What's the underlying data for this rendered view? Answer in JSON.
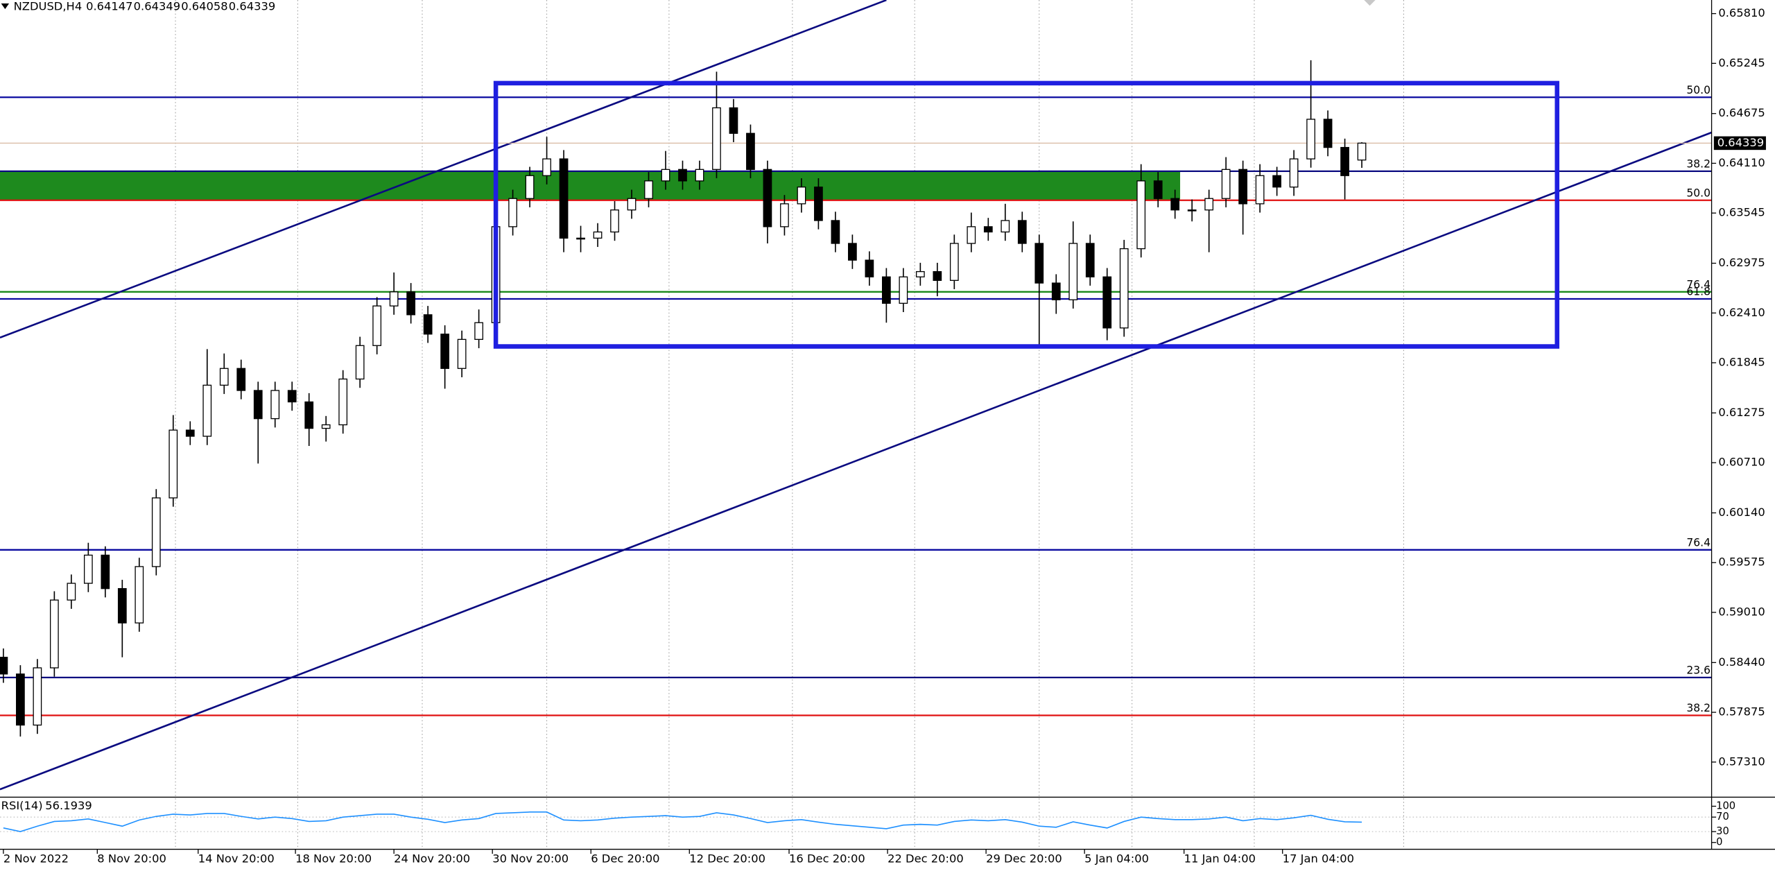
{
  "chart_data": {
    "type": "candlestick",
    "symbol": "NZDUSD,H4",
    "open": [
      0.585,
      0.5831,
      0.5773,
      0.5838,
      0.5915,
      0.5934,
      0.5966,
      0.5928,
      0.5889,
      0.5953,
      0.6031,
      0.6108,
      0.6101,
      0.6159,
      0.6178,
      0.6153,
      0.6121,
      0.6153,
      0.614,
      0.611,
      0.6114,
      0.6166,
      0.6204,
      0.6249,
      0.6265,
      0.6239,
      0.6217,
      0.6178,
      0.6211,
      0.623,
      0.6339,
      0.6371,
      0.6397,
      0.6416,
      0.6326,
      0.6326,
      0.6333,
      0.6358,
      0.6371,
      0.6391,
      0.6404,
      0.6391,
      0.6404,
      0.6474,
      0.6445,
      0.6404,
      0.6339,
      0.6365,
      0.6384,
      0.6346,
      0.632,
      0.6301,
      0.6282,
      0.6252,
      0.6282,
      0.6288,
      0.6278,
      0.632,
      0.6339,
      0.6333,
      0.6346,
      0.632,
      0.6275,
      0.6256,
      0.632,
      0.6282,
      0.6224,
      0.6314,
      0.6391,
      0.6371,
      0.6358,
      0.6358,
      0.6371,
      0.6404,
      0.6365,
      0.6397,
      0.6384,
      0.6416,
      0.6461,
      0.6429,
      0.64147
    ],
    "high": [
      0.586,
      0.5841,
      0.5848,
      0.5925,
      0.5944,
      0.598,
      0.5976,
      0.5938,
      0.5963,
      0.6041,
      0.6125,
      0.6118,
      0.62,
      0.6195,
      0.6188,
      0.6163,
      0.6163,
      0.6163,
      0.615,
      0.6124,
      0.6176,
      0.6214,
      0.6259,
      0.6287,
      0.6275,
      0.6249,
      0.6227,
      0.6221,
      0.6245,
      0.6349,
      0.6381,
      0.6407,
      0.6441,
      0.6426,
      0.634,
      0.6343,
      0.6368,
      0.6381,
      0.6401,
      0.6425,
      0.6414,
      0.6414,
      0.6515,
      0.6484,
      0.6455,
      0.6414,
      0.6375,
      0.6394,
      0.6394,
      0.6356,
      0.633,
      0.6311,
      0.6292,
      0.6292,
      0.6298,
      0.6298,
      0.633,
      0.6355,
      0.6349,
      0.6365,
      0.6356,
      0.633,
      0.6285,
      0.6345,
      0.633,
      0.6292,
      0.6324,
      0.641,
      0.6401,
      0.6381,
      0.637,
      0.6381,
      0.6418,
      0.6414,
      0.641,
      0.6407,
      0.6426,
      0.6528,
      0.6471,
      0.6439,
      0.64349
    ],
    "low": [
      0.5821,
      0.576,
      0.5763,
      0.5828,
      0.5905,
      0.5924,
      0.5918,
      0.585,
      0.5879,
      0.5943,
      0.6021,
      0.6091,
      0.6091,
      0.6149,
      0.6143,
      0.607,
      0.6111,
      0.613,
      0.609,
      0.6095,
      0.6104,
      0.6156,
      0.6194,
      0.6239,
      0.6229,
      0.6207,
      0.6155,
      0.6168,
      0.6201,
      0.622,
      0.6329,
      0.6361,
      0.6387,
      0.631,
      0.631,
      0.6316,
      0.6323,
      0.6348,
      0.6361,
      0.6381,
      0.6381,
      0.6381,
      0.6394,
      0.6435,
      0.6394,
      0.632,
      0.6329,
      0.6355,
      0.6336,
      0.631,
      0.6291,
      0.6272,
      0.623,
      0.6242,
      0.6272,
      0.626,
      0.6268,
      0.631,
      0.6323,
      0.6323,
      0.631,
      0.6205,
      0.624,
      0.6246,
      0.6272,
      0.621,
      0.6214,
      0.6304,
      0.6361,
      0.6348,
      0.6345,
      0.631,
      0.6361,
      0.633,
      0.6355,
      0.6374,
      0.6374,
      0.6406,
      0.6419,
      0.637,
      0.64058
    ],
    "close": [
      0.5831,
      0.5773,
      0.5838,
      0.5915,
      0.5934,
      0.5966,
      0.5928,
      0.5889,
      0.5953,
      0.6031,
      0.6108,
      0.6101,
      0.6159,
      0.6178,
      0.6153,
      0.6121,
      0.6153,
      0.614,
      0.611,
      0.6114,
      0.6166,
      0.6204,
      0.6249,
      0.6265,
      0.6239,
      0.6217,
      0.6178,
      0.6211,
      0.623,
      0.6339,
      0.6371,
      0.6397,
      0.6416,
      0.6326,
      0.6326,
      0.6333,
      0.6358,
      0.6371,
      0.6391,
      0.6404,
      0.6391,
      0.6404,
      0.6474,
      0.6445,
      0.6404,
      0.6339,
      0.6365,
      0.6384,
      0.6346,
      0.632,
      0.6301,
      0.6282,
      0.6252,
      0.6282,
      0.6288,
      0.6278,
      0.632,
      0.6339,
      0.6333,
      0.6346,
      0.632,
      0.6275,
      0.6256,
      0.632,
      0.6282,
      0.6224,
      0.6314,
      0.6391,
      0.6371,
      0.6358,
      0.6358,
      0.6371,
      0.6404,
      0.6365,
      0.6397,
      0.6384,
      0.6416,
      0.6461,
      0.6429,
      0.6397,
      0.64339
    ],
    "xlim": [
      -0.2,
      100.6
    ],
    "xticks": [
      {
        "value": 0,
        "label": "2 Nov 2022"
      },
      {
        "value": 5.53,
        "label": "8 Nov 20:00"
      },
      {
        "value": 11.47,
        "label": "14 Nov 20:00"
      },
      {
        "value": 17.2,
        "label": "18 Nov 20:00"
      },
      {
        "value": 23,
        "label": "24 Nov 20:00"
      },
      {
        "value": 28.8,
        "label": "30 Nov 20:00"
      },
      {
        "value": 34.6,
        "label": "6 Dec 20:00"
      },
      {
        "value": 40.4,
        "label": "12 Dec 20:00"
      },
      {
        "value": 46.27,
        "label": "16 Dec 20:00"
      },
      {
        "value": 52.07,
        "label": "22 Dec 20:00"
      },
      {
        "value": 57.87,
        "label": "29 Dec 20:00"
      },
      {
        "value": 63.67,
        "label": "5 Jan 04:00"
      },
      {
        "value": 69.53,
        "label": "11 Jan 04:00"
      },
      {
        "value": 75.33,
        "label": "17 Jan 04:00"
      }
    ],
    "ylim": [
      0.56924,
      0.65964
    ],
    "yticks": [
      {
        "value": 0.6581,
        "label": "0.65810"
      },
      0.65245,
      0.64675,
      {
        "value": 0.6411,
        "label": "0.64110"
      },
      0.63545,
      0.62975,
      {
        "value": 0.6241,
        "label": "0.62410"
      },
      0.61845,
      0.61275,
      {
        "value": 0.6071,
        "label": "0.60710"
      },
      {
        "value": 0.6014,
        "label": "0.60140"
      },
      0.59575,
      {
        "value": 0.5901,
        "label": "0.59010"
      },
      {
        "value": 0.5844,
        "label": "0.58440"
      },
      0.57875,
      {
        "value": 0.5731,
        "label": "0.57310"
      }
    ],
    "levels": [
      {
        "value": 0.6486,
        "label": "50.0",
        "color": "#0a0aa0"
      },
      {
        "value": 0.6402,
        "label": "38.2",
        "color": "#0a0a80"
      },
      {
        "value": 0.6369,
        "label": "50.0",
        "color": "#e01010"
      },
      {
        "value": 0.6265,
        "label": "76.4",
        "color": "#1a8a1a"
      },
      {
        "value": 0.6257,
        "label": "61.8",
        "color": "#0a0aa0"
      },
      {
        "value": 0.5972,
        "label": "76.4",
        "color": "#0a0aa0"
      },
      {
        "value": 0.5827,
        "label": "23.6",
        "color": "#0a0a80"
      },
      {
        "value": 0.5784,
        "label": "38.2",
        "color": "#e01010"
      }
    ],
    "zone": {
      "x": [
        -0.2,
        69.3
      ],
      "y": [
        0.6369,
        0.6402
      ],
      "color": "#1e8a1e"
    },
    "box": {
      "x": [
        29,
        91.5
      ],
      "y": [
        0.6203,
        0.6502
      ],
      "color": "#1f1fe0"
    },
    "trendlines": [
      {
        "x": [
          -0.2,
          52
        ],
        "y": [
          0.6213,
          0.65964
        ],
        "color": "#0a0a80"
      },
      {
        "x": [
          -0.2,
          100.6
        ],
        "y": [
          0.57,
          0.6446
        ],
        "color": "#0a0a80"
      }
    ],
    "rsi": {
      "name": "RSI(14)",
      "color": "#1e90ff",
      "ylim": [
        0,
        100
      ],
      "yticks": [
        100,
        70,
        30,
        0
      ],
      "values": [
        40,
        30,
        45,
        58,
        60,
        65,
        55,
        45,
        62,
        72,
        78,
        76,
        80,
        80,
        72,
        65,
        70,
        66,
        58,
        60,
        70,
        74,
        78,
        78,
        70,
        64,
        55,
        62,
        66,
        80,
        82,
        84,
        84,
        62,
        60,
        62,
        67,
        70,
        72,
        74,
        70,
        72,
        82,
        76,
        66,
        55,
        60,
        63,
        56,
        50,
        46,
        42,
        38,
        48,
        50,
        48,
        58,
        62,
        60,
        63,
        56,
        45,
        42,
        57,
        48,
        40,
        58,
        70,
        66,
        63,
        63,
        65,
        70,
        60,
        66,
        63,
        68,
        75,
        64,
        57,
        56.1939
      ]
    }
  }
}
